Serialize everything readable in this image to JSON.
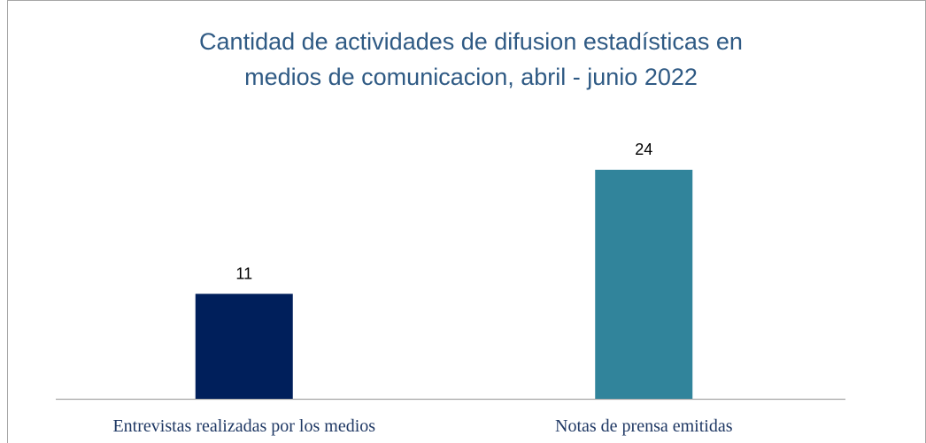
{
  "chart_data": {
    "type": "bar",
    "title": [
      "Cantidad de actividades de difusion estadísticas en",
      "medios de comunicacion, abril - junio 2022"
    ],
    "categories": [
      "Entrevistas realizadas por los medios",
      "Notas de prensa emitidas"
    ],
    "values": [
      11,
      24
    ],
    "colors": [
      "#001f5b",
      "#31849b"
    ]
  }
}
